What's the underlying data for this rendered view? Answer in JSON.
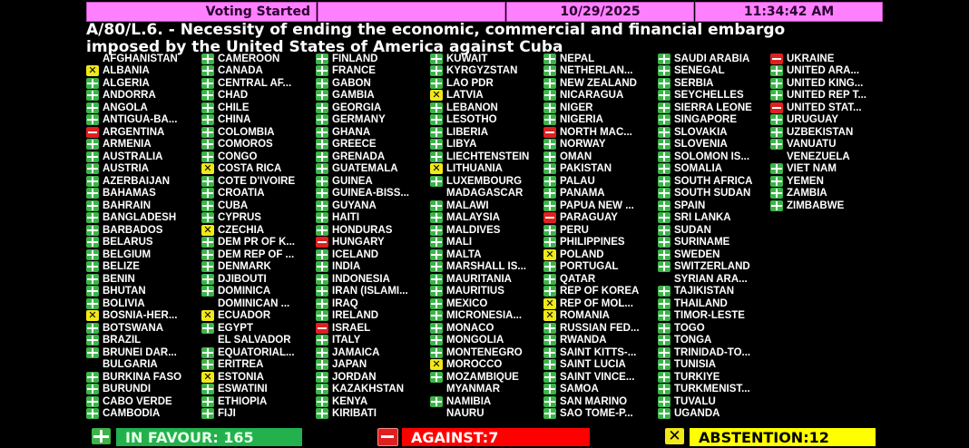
{
  "header": {
    "status": "Voting Started",
    "blank": "",
    "date": "10/29/2025",
    "time": "11:34:42 AM"
  },
  "resolution": {
    "line1": "A/80/L.6. - Necessity of ending the economic, commercial and financial embargo",
    "line2": "imposed by the United States of America against Cuba"
  },
  "vote_legend": {
    "Y": "in-favour (green plus)",
    "N": "against (red minus)",
    "A": "abstention (yellow x)",
    "": "no vote"
  },
  "colors": {
    "favour": "#3cb44a",
    "against": "#e02020",
    "abstention": "#f0e818",
    "header": "#ff80ff"
  },
  "columns": [
    [
      [
        "AFGHANISTAN",
        ""
      ],
      [
        "ALBANIA",
        "A"
      ],
      [
        "ALGERIA",
        "Y"
      ],
      [
        "ANDORRA",
        "Y"
      ],
      [
        "ANGOLA",
        "Y"
      ],
      [
        "ANTIGUA-BA...",
        "Y"
      ],
      [
        "ARGENTINA",
        "N"
      ],
      [
        "ARMENIA",
        "Y"
      ],
      [
        "AUSTRALIA",
        "Y"
      ],
      [
        "AUSTRIA",
        "Y"
      ],
      [
        "AZERBAIJAN",
        "Y"
      ],
      [
        "BAHAMAS",
        "Y"
      ],
      [
        "BAHRAIN",
        "Y"
      ],
      [
        "BANGLADESH",
        "Y"
      ],
      [
        "BARBADOS",
        "Y"
      ],
      [
        "BELARUS",
        "Y"
      ],
      [
        "BELGIUM",
        "Y"
      ],
      [
        "BELIZE",
        "Y"
      ],
      [
        "BENIN",
        "Y"
      ],
      [
        "BHUTAN",
        "Y"
      ],
      [
        "BOLIVIA",
        "Y"
      ],
      [
        "BOSNIA-HER...",
        "A"
      ],
      [
        "BOTSWANA",
        "Y"
      ],
      [
        "BRAZIL",
        "Y"
      ],
      [
        "BRUNEI DAR...",
        "Y"
      ],
      [
        "BULGARIA",
        ""
      ],
      [
        "BURKINA FASO",
        "Y"
      ],
      [
        "BURUNDI",
        "Y"
      ],
      [
        "CABO VERDE",
        "Y"
      ],
      [
        "CAMBODIA",
        "Y"
      ]
    ],
    [
      [
        "CAMEROON",
        "Y"
      ],
      [
        "CANADA",
        "Y"
      ],
      [
        "CENTRAL AF...",
        "Y"
      ],
      [
        "CHAD",
        "Y"
      ],
      [
        "CHILE",
        "Y"
      ],
      [
        "CHINA",
        "Y"
      ],
      [
        "COLOMBIA",
        "Y"
      ],
      [
        "COMOROS",
        "Y"
      ],
      [
        "CONGO",
        "Y"
      ],
      [
        "COSTA RICA",
        "A"
      ],
      [
        "COTE D'IVOIRE",
        "Y"
      ],
      [
        "CROATIA",
        "Y"
      ],
      [
        "CUBA",
        "Y"
      ],
      [
        "CYPRUS",
        "Y"
      ],
      [
        "CZECHIA",
        "A"
      ],
      [
        "DEM PR OF K...",
        "Y"
      ],
      [
        "DEM REP OF ...",
        "Y"
      ],
      [
        "DENMARK",
        "Y"
      ],
      [
        "DJIBOUTI",
        "Y"
      ],
      [
        "DOMINICA",
        "Y"
      ],
      [
        "DOMINICAN ...",
        ""
      ],
      [
        "ECUADOR",
        "A"
      ],
      [
        "EGYPT",
        "Y"
      ],
      [
        "EL SALVADOR",
        ""
      ],
      [
        "EQUATORIAL...",
        "Y"
      ],
      [
        "ERITREA",
        "Y"
      ],
      [
        "ESTONIA",
        "A"
      ],
      [
        "ESWATINI",
        "Y"
      ],
      [
        "ETHIOPIA",
        "Y"
      ],
      [
        "FIJI",
        "Y"
      ]
    ],
    [
      [
        "FINLAND",
        "Y"
      ],
      [
        "FRANCE",
        "Y"
      ],
      [
        "GABON",
        "Y"
      ],
      [
        "GAMBIA",
        "Y"
      ],
      [
        "GEORGIA",
        "Y"
      ],
      [
        "GERMANY",
        "Y"
      ],
      [
        "GHANA",
        "Y"
      ],
      [
        "GREECE",
        "Y"
      ],
      [
        "GRENADA",
        "Y"
      ],
      [
        "GUATEMALA",
        "Y"
      ],
      [
        "GUINEA",
        "Y"
      ],
      [
        "GUINEA-BISS...",
        "Y"
      ],
      [
        "GUYANA",
        "Y"
      ],
      [
        "HAITI",
        "Y"
      ],
      [
        "HONDURAS",
        "Y"
      ],
      [
        "HUNGARY",
        "N"
      ],
      [
        "ICELAND",
        "Y"
      ],
      [
        "INDIA",
        "Y"
      ],
      [
        "INDONESIA",
        "Y"
      ],
      [
        "IRAN (ISLAMI...",
        "Y"
      ],
      [
        "IRAQ",
        "Y"
      ],
      [
        "IRELAND",
        "Y"
      ],
      [
        "ISRAEL",
        "N"
      ],
      [
        "ITALY",
        "Y"
      ],
      [
        "JAMAICA",
        "Y"
      ],
      [
        "JAPAN",
        "Y"
      ],
      [
        "JORDAN",
        "Y"
      ],
      [
        "KAZAKHSTAN",
        "Y"
      ],
      [
        "KENYA",
        "Y"
      ],
      [
        "KIRIBATI",
        "Y"
      ]
    ],
    [
      [
        "KUWAIT",
        "Y"
      ],
      [
        "KYRGYZSTAN",
        "Y"
      ],
      [
        "LAO PDR",
        "Y"
      ],
      [
        "LATVIA",
        "A"
      ],
      [
        "LEBANON",
        "Y"
      ],
      [
        "LESOTHO",
        "Y"
      ],
      [
        "LIBERIA",
        "Y"
      ],
      [
        "LIBYA",
        "Y"
      ],
      [
        "LIECHTENSTEIN",
        "Y"
      ],
      [
        "LITHUANIA",
        "A"
      ],
      [
        "LUXEMBOURG",
        "Y"
      ],
      [
        "MADAGASCAR",
        ""
      ],
      [
        "MALAWI",
        "Y"
      ],
      [
        "MALAYSIA",
        "Y"
      ],
      [
        "MALDIVES",
        "Y"
      ],
      [
        "MALI",
        "Y"
      ],
      [
        "MALTA",
        "Y"
      ],
      [
        "MARSHALL IS...",
        "Y"
      ],
      [
        "MAURITANIA",
        "Y"
      ],
      [
        "MAURITIUS",
        "Y"
      ],
      [
        "MEXICO",
        "Y"
      ],
      [
        "MICRONESIA...",
        "Y"
      ],
      [
        "MONACO",
        "Y"
      ],
      [
        "MONGOLIA",
        "Y"
      ],
      [
        "MONTENEGRO",
        "Y"
      ],
      [
        "MOROCCO",
        "A"
      ],
      [
        "MOZAMBIQUE",
        "Y"
      ],
      [
        "MYANMAR",
        ""
      ],
      [
        "NAMIBIA",
        "Y"
      ],
      [
        "NAURU",
        ""
      ]
    ],
    [
      [
        "NEPAL",
        "Y"
      ],
      [
        "NETHERLAN...",
        "Y"
      ],
      [
        "NEW ZEALAND",
        "Y"
      ],
      [
        "NICARAGUA",
        "Y"
      ],
      [
        "NIGER",
        "Y"
      ],
      [
        "NIGERIA",
        "Y"
      ],
      [
        "NORTH MAC...",
        "N"
      ],
      [
        "NORWAY",
        "Y"
      ],
      [
        "OMAN",
        "Y"
      ],
      [
        "PAKISTAN",
        "Y"
      ],
      [
        "PALAU",
        "Y"
      ],
      [
        "PANAMA",
        "Y"
      ],
      [
        "PAPUA NEW ...",
        "Y"
      ],
      [
        "PARAGUAY",
        "N"
      ],
      [
        "PERU",
        "Y"
      ],
      [
        "PHILIPPINES",
        "Y"
      ],
      [
        "POLAND",
        "A"
      ],
      [
        "PORTUGAL",
        "Y"
      ],
      [
        "QATAR",
        "Y"
      ],
      [
        "REP OF KOREA",
        "Y"
      ],
      [
        "REP OF MOL...",
        "A"
      ],
      [
        "ROMANIA",
        "A"
      ],
      [
        "RUSSIAN FED...",
        "Y"
      ],
      [
        "RWANDA",
        "Y"
      ],
      [
        "SAINT KITTS-...",
        "Y"
      ],
      [
        "SAINT LUCIA",
        "Y"
      ],
      [
        "SAINT VINCE...",
        "Y"
      ],
      [
        "SAMOA",
        "Y"
      ],
      [
        "SAN MARINO",
        "Y"
      ],
      [
        "SAO TOME-P...",
        "Y"
      ]
    ],
    [
      [
        "SAUDI ARABIA",
        "Y"
      ],
      [
        "SENEGAL",
        "Y"
      ],
      [
        "SERBIA",
        "Y"
      ],
      [
        "SEYCHELLES",
        "Y"
      ],
      [
        "SIERRA LEONE",
        "Y"
      ],
      [
        "SINGAPORE",
        "Y"
      ],
      [
        "SLOVAKIA",
        "Y"
      ],
      [
        "SLOVENIA",
        "Y"
      ],
      [
        "SOLOMON IS...",
        "Y"
      ],
      [
        "SOMALIA",
        "Y"
      ],
      [
        "SOUTH AFRICA",
        "Y"
      ],
      [
        "SOUTH SUDAN",
        "Y"
      ],
      [
        "SPAIN",
        "Y"
      ],
      [
        "SRI LANKA",
        "Y"
      ],
      [
        "SUDAN",
        "Y"
      ],
      [
        "SURINAME",
        "Y"
      ],
      [
        "SWEDEN",
        "Y"
      ],
      [
        "SWITZERLAND",
        "Y"
      ],
      [
        "SYRIAN ARA...",
        ""
      ],
      [
        "TAJIKISTAN",
        "Y"
      ],
      [
        "THAILAND",
        "Y"
      ],
      [
        "TIMOR-LESTE",
        "Y"
      ],
      [
        "TOGO",
        "Y"
      ],
      [
        "TONGA",
        "Y"
      ],
      [
        "TRINIDAD-TO...",
        "Y"
      ],
      [
        "TUNISIA",
        "Y"
      ],
      [
        "TURKIYE",
        "Y"
      ],
      [
        "TURKMENIST...",
        "Y"
      ],
      [
        "TUVALU",
        "Y"
      ],
      [
        "UGANDA",
        "Y"
      ]
    ],
    [
      [
        "UKRAINE",
        "N"
      ],
      [
        "UNITED ARA...",
        "Y"
      ],
      [
        "UNITED KING...",
        "Y"
      ],
      [
        "UNITED REP T...",
        "Y"
      ],
      [
        "UNITED STAT...",
        "N"
      ],
      [
        "URUGUAY",
        "Y"
      ],
      [
        "UZBEKISTAN",
        "Y"
      ],
      [
        "VANUATU",
        "Y"
      ],
      [
        "VENEZUELA",
        ""
      ],
      [
        "VIET NAM",
        "Y"
      ],
      [
        "YEMEN",
        "Y"
      ],
      [
        "ZAMBIA",
        "Y"
      ],
      [
        "ZIMBABWE",
        "Y"
      ]
    ]
  ],
  "totals": {
    "favour": "IN FAVOUR: 165",
    "against": "AGAINST:7",
    "abstention": "ABSTENTION:12"
  }
}
